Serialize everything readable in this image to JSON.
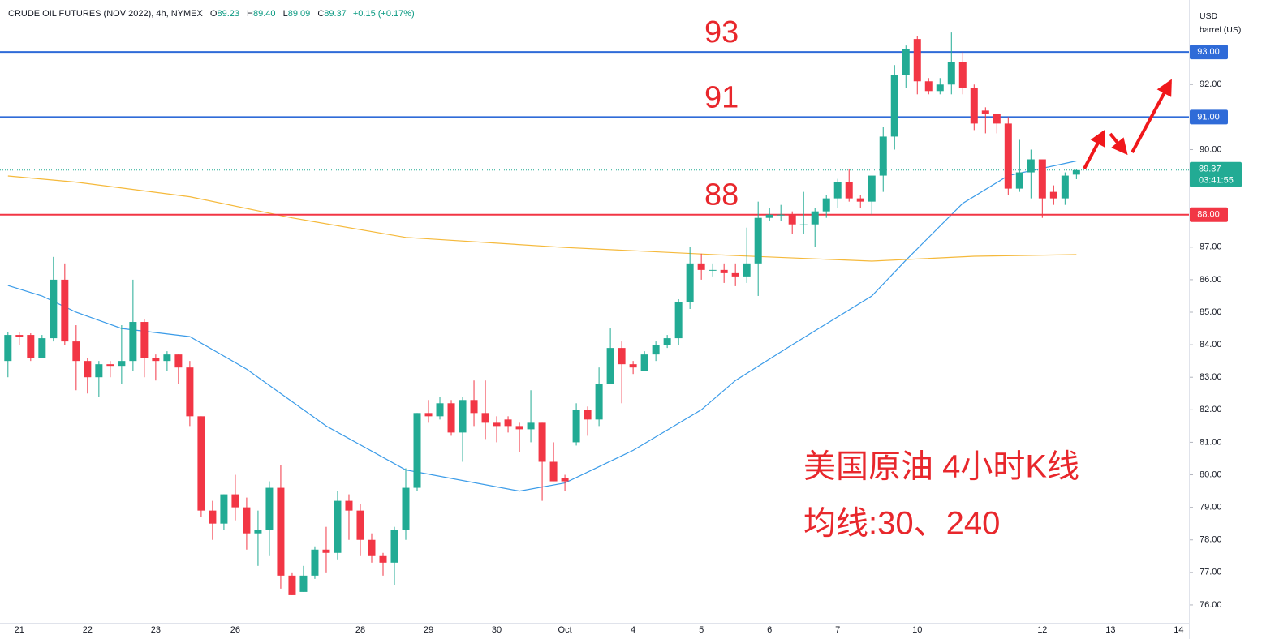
{
  "header": {
    "title": "CRUDE OIL FUTURES (NOV 2022), 4h, NYMEX",
    "ohlc": [
      {
        "key": "O",
        "value": "89.23"
      },
      {
        "key": "H",
        "value": "89.40"
      },
      {
        "key": "L",
        "value": "89.09"
      },
      {
        "key": "C",
        "value": "89.37"
      }
    ],
    "change": "+0.15 (+0.17%)"
  },
  "chart_data": {
    "type": "candlestick",
    "unit": [
      "USD",
      "barrel (US)"
    ],
    "up_color": "#22ab94",
    "down_color": "#f23645",
    "categories": [
      null,
      "21",
      null,
      null,
      null,
      null,
      null,
      "22",
      null,
      null,
      null,
      null,
      null,
      "23",
      null,
      null,
      null,
      null,
      null,
      null,
      "26",
      null,
      null,
      null,
      null,
      null,
      null,
      null,
      null,
      null,
      null,
      "28",
      null,
      null,
      null,
      null,
      null,
      "29",
      null,
      null,
      null,
      null,
      null,
      "30",
      null,
      null,
      null,
      null,
      null,
      "Oct",
      null,
      null,
      null,
      null,
      null,
      "4",
      null,
      null,
      null,
      null,
      null,
      "5",
      null,
      null,
      null,
      null,
      null,
      "6",
      null,
      null,
      null,
      null,
      null,
      "7",
      null,
      null,
      null,
      null,
      null,
      null,
      "10",
      null,
      null,
      null,
      null,
      null,
      null,
      null,
      null,
      null,
      null,
      "12",
      null,
      null,
      null,
      null,
      null,
      "13",
      null,
      null,
      null,
      null,
      null,
      "14"
    ],
    "open": [
      83.5,
      84.3,
      84.3,
      83.6,
      84.2,
      86.0,
      84.1,
      83.5,
      83.0,
      83.4,
      83.35,
      83.5,
      84.7,
      83.6,
      83.5,
      83.7,
      83.3,
      81.8,
      78.9,
      78.5,
      79.4,
      79.0,
      78.2,
      78.3,
      79.6,
      76.9,
      76.4,
      76.9,
      77.7,
      77.6,
      79.2,
      78.9,
      78.0,
      77.5,
      77.3,
      78.3,
      79.6,
      81.9,
      81.8,
      82.2,
      81.3,
      82.3,
      81.9,
      81.6,
      81.7,
      81.5,
      81.4,
      81.6,
      80.4,
      79.9,
      81.0,
      82.0,
      81.7,
      82.8,
      83.9,
      83.4,
      83.2,
      83.7,
      84.0,
      84.2,
      85.3,
      86.5,
      86.3,
      86.3,
      86.2,
      86.1,
      86.5,
      87.9,
      88.0,
      88.0,
      87.7,
      87.7,
      88.1,
      88.5,
      89.0,
      88.5,
      88.4,
      89.2,
      90.4,
      92.3,
      93.4,
      92.1,
      91.8,
      92.0,
      92.7,
      91.9,
      91.2,
      91.1,
      90.8,
      88.8,
      89.3,
      89.7,
      88.7,
      88.5,
      89.23,
      null,
      null,
      null,
      null,
      null,
      null,
      null,
      null,
      null
    ],
    "high": [
      84.4,
      84.4,
      84.35,
      84.3,
      86.7,
      86.5,
      84.6,
      83.6,
      83.5,
      83.5,
      84.6,
      86.0,
      84.8,
      83.7,
      83.8,
      83.7,
      83.5,
      81.8,
      79.2,
      79.4,
      80.0,
      79.3,
      78.9,
      79.8,
      80.3,
      77.0,
      77.2,
      77.8,
      78.4,
      79.5,
      79.4,
      79.1,
      78.2,
      77.6,
      78.4,
      80.2,
      81.9,
      82.3,
      82.4,
      82.3,
      82.4,
      82.9,
      82.9,
      81.8,
      81.8,
      81.6,
      82.6,
      81.6,
      81.0,
      80.0,
      82.2,
      82.1,
      83.3,
      84.5,
      84.1,
      83.5,
      83.8,
      84.1,
      84.3,
      85.4,
      87.0,
      86.8,
      86.5,
      86.5,
      86.5,
      87.6,
      88.4,
      88.2,
      88.3,
      88.1,
      88.7,
      88.2,
      88.6,
      89.1,
      89.4,
      88.6,
      89.2,
      90.7,
      92.6,
      93.2,
      93.5,
      92.2,
      92.2,
      93.6,
      93.0,
      92.0,
      91.3,
      91.1,
      91.0,
      90.3,
      90.0,
      89.7,
      88.9,
      89.3,
      89.4,
      null,
      null,
      null,
      null,
      null,
      null,
      null,
      null,
      null
    ],
    "low": [
      83.0,
      84.0,
      83.5,
      83.6,
      84.1,
      84.0,
      82.6,
      82.5,
      82.4,
      83.0,
      82.8,
      83.2,
      83.0,
      82.9,
      83.2,
      82.8,
      81.5,
      78.7,
      78.0,
      78.3,
      78.6,
      77.7,
      77.2,
      77.5,
      76.5,
      76.3,
      76.4,
      76.8,
      77.0,
      77.4,
      78.0,
      77.5,
      77.3,
      76.9,
      76.6,
      78.0,
      79.5,
      81.6,
      81.7,
      81.2,
      80.4,
      81.5,
      81.1,
      81.0,
      81.3,
      80.7,
      81.0,
      79.2,
      79.8,
      79.5,
      80.9,
      81.2,
      81.5,
      82.8,
      82.2,
      83.1,
      83.2,
      83.5,
      83.9,
      84.0,
      85.1,
      86.0,
      86.1,
      85.9,
      85.8,
      85.9,
      85.5,
      87.8,
      87.8,
      87.4,
      87.4,
      87.0,
      87.9,
      88.2,
      88.4,
      88.2,
      88.0,
      88.7,
      90.0,
      91.9,
      91.7,
      91.7,
      91.7,
      91.7,
      91.7,
      90.6,
      90.5,
      90.5,
      88.6,
      88.7,
      88.5,
      87.9,
      88.3,
      88.3,
      89.09,
      null,
      null,
      null,
      null,
      null,
      null,
      null,
      null,
      null
    ],
    "close": [
      84.3,
      84.25,
      83.6,
      84.2,
      86.0,
      84.1,
      83.5,
      83.0,
      83.4,
      83.35,
      83.5,
      84.7,
      83.6,
      83.5,
      83.7,
      83.3,
      81.8,
      78.9,
      78.5,
      79.4,
      79.0,
      78.2,
      78.3,
      79.6,
      76.9,
      76.3,
      76.9,
      77.7,
      77.6,
      79.2,
      78.9,
      78.0,
      77.5,
      77.3,
      78.3,
      79.6,
      81.9,
      81.8,
      82.2,
      81.3,
      82.3,
      81.9,
      81.6,
      81.5,
      81.5,
      81.4,
      81.6,
      80.4,
      79.8,
      79.8,
      82.0,
      81.7,
      82.8,
      83.9,
      83.4,
      83.3,
      83.7,
      84.0,
      84.2,
      85.3,
      86.5,
      86.3,
      86.3,
      86.2,
      86.1,
      86.5,
      87.9,
      88.0,
      88.0,
      87.7,
      87.7,
      88.1,
      88.5,
      89.0,
      88.5,
      88.4,
      89.2,
      90.4,
      92.3,
      93.1,
      92.1,
      91.8,
      92.0,
      92.7,
      91.9,
      90.8,
      91.1,
      90.8,
      88.8,
      89.3,
      89.7,
      88.5,
      88.5,
      89.2,
      89.37,
      null,
      null,
      null,
      null,
      null,
      null,
      null,
      null,
      null
    ],
    "overlays": [
      {
        "color": "#3a9be8",
        "x": [
          0,
          3,
          6,
          10,
          16,
          21,
          28,
          35,
          45,
          49,
          55,
          61,
          64,
          69,
          76,
          79,
          84,
          88,
          94
        ],
        "values": [
          85.82,
          85.5,
          85.0,
          84.5,
          84.25,
          83.25,
          81.5,
          80.15,
          79.5,
          79.75,
          80.75,
          82.0,
          82.9,
          84.0,
          85.5,
          86.6,
          88.35,
          89.2,
          89.65
        ]
      },
      {
        "color": "#f5b93b",
        "x": [
          0,
          6,
          16,
          25,
          35,
          49,
          64,
          76,
          85,
          94
        ],
        "values": [
          89.19,
          89.0,
          88.55,
          87.9,
          87.3,
          86.99,
          86.74,
          86.57,
          86.72,
          86.77
        ]
      }
    ],
    "xlim": [
      -0.7,
      103.9
    ],
    "ylim": [
      75.45,
      94.6
    ],
    "yticks": [
      {
        "value": 76,
        "label": "76.00"
      },
      {
        "value": 77,
        "label": "77.00"
      },
      {
        "value": 78,
        "label": "78.00"
      },
      {
        "value": 79,
        "label": "79.00"
      },
      {
        "value": 80,
        "label": "80.00"
      },
      {
        "value": 81,
        "label": "81.00"
      },
      {
        "value": 82,
        "label": "82.00"
      },
      {
        "value": 83,
        "label": "83.00"
      },
      {
        "value": 84,
        "label": "84.00"
      },
      {
        "value": 85,
        "label": "85.00"
      },
      {
        "value": 86,
        "label": "86.00"
      },
      {
        "value": 87,
        "label": "87.00"
      },
      {
        "value": 90,
        "label": "90.00"
      },
      {
        "value": 92,
        "label": "92.00"
      }
    ],
    "levels": [
      {
        "value": 93,
        "label": "93.00",
        "note": "93",
        "color": "#2f6bd8"
      },
      {
        "value": 91,
        "label": "91.00",
        "note": "91",
        "color": "#2f6bd8"
      },
      {
        "value": 88,
        "label": "88.00",
        "note": "88",
        "color": "#f23645"
      }
    ],
    "last": {
      "value": 89.37,
      "label": "89.37",
      "timer": "03:41:55",
      "color": "#22ab94"
    },
    "annotations": [
      "美国原油 4小时K线",
      "均线:30、240"
    ]
  }
}
